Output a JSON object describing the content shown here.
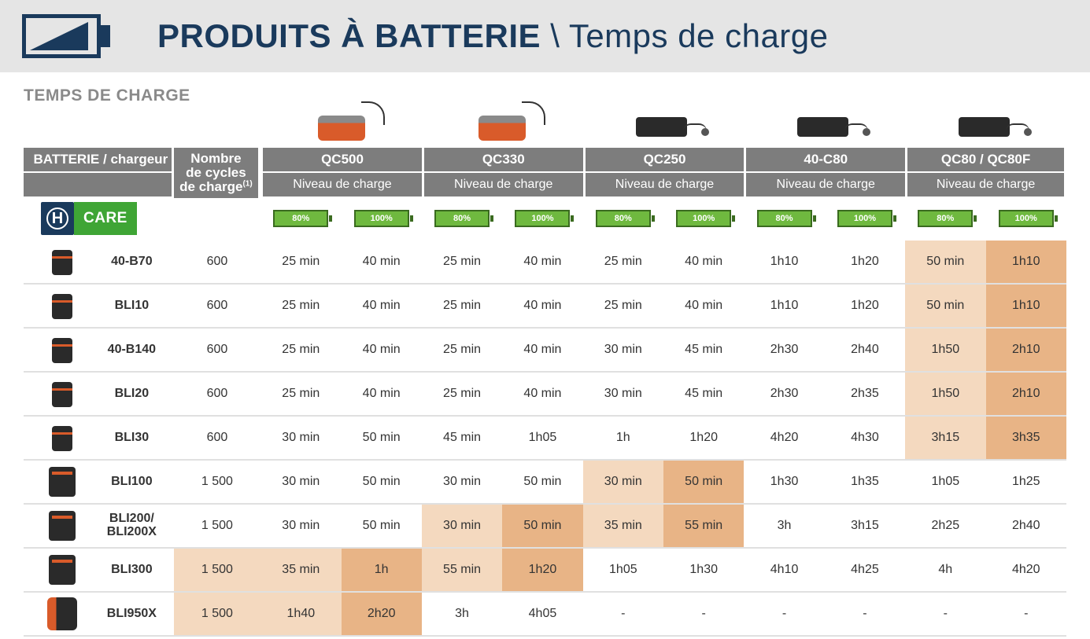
{
  "header": {
    "title_bold": "PRODUITS À BATTERIE",
    "title_rest": " \\ Temps de charge",
    "icon_border_color": "#1a3a5c",
    "bg_color": "#e5e5e5"
  },
  "subtitle": "TEMPS DE CHARGE",
  "styling": {
    "header_row_bg": "#7d7d7d",
    "header_row_fg": "#ffffff",
    "row_border": "#e0e0e0",
    "highlight_light": "#f4d9bf",
    "highlight_dark": "#e8b486",
    "care_blue": "#1a3a5c",
    "care_green": "#3fa535",
    "pill_bg": "#6fb93f",
    "pill_border": "#3a6b1f",
    "body_font_size": 16,
    "header_font_size": 17
  },
  "labels": {
    "battery_charger": "BATTERIE / chargeur",
    "cycles_l1": "Nombre",
    "cycles_l2": "de cycles",
    "cycles_l3": "de charge",
    "cycles_sup": "(1)",
    "level": "Niveau de charge",
    "care": "CARE",
    "pct80": "80%",
    "pct100": "100%"
  },
  "chargers": [
    {
      "id": "QC500",
      "style": "orange"
    },
    {
      "id": "QC330",
      "style": "orange"
    },
    {
      "id": "QC250",
      "style": "black"
    },
    {
      "id": "40-C80",
      "style": "black"
    },
    {
      "id": "QC80 / QC80F",
      "style": "black"
    }
  ],
  "batteries": [
    {
      "name": "40-B70",
      "icon": "small",
      "cycles": "600",
      "times": [
        "25 min",
        "40 min",
        "25 min",
        "40 min",
        "25 min",
        "40 min",
        "1h10",
        "1h20",
        "50 min",
        "1h10"
      ],
      "hl_cols": [
        8,
        9
      ]
    },
    {
      "name": "BLI10",
      "icon": "small",
      "cycles": "600",
      "times": [
        "25 min",
        "40 min",
        "25 min",
        "40 min",
        "25 min",
        "40 min",
        "1h10",
        "1h20",
        "50 min",
        "1h10"
      ],
      "hl_cols": [
        8,
        9
      ]
    },
    {
      "name": "40-B140",
      "icon": "small",
      "cycles": "600",
      "times": [
        "25 min",
        "40 min",
        "25 min",
        "40 min",
        "30 min",
        "45 min",
        "2h30",
        "2h40",
        "1h50",
        "2h10"
      ],
      "hl_cols": [
        8,
        9
      ]
    },
    {
      "name": "BLI20",
      "icon": "small",
      "cycles": "600",
      "times": [
        "25 min",
        "40 min",
        "25 min",
        "40 min",
        "30 min",
        "45 min",
        "2h30",
        "2h35",
        "1h50",
        "2h10"
      ],
      "hl_cols": [
        8,
        9
      ]
    },
    {
      "name": "BLI30",
      "icon": "small",
      "cycles": "600",
      "times": [
        "30 min",
        "50 min",
        "45 min",
        "1h05",
        "1h",
        "1h20",
        "4h20",
        "4h30",
        "3h15",
        "3h35"
      ],
      "hl_cols": [
        8,
        9
      ]
    },
    {
      "name": "BLI100",
      "icon": "med",
      "cycles": "1 500",
      "times": [
        "30 min",
        "50 min",
        "30 min",
        "50 min",
        "30 min",
        "50 min",
        "1h30",
        "1h35",
        "1h05",
        "1h25"
      ],
      "hl_cols": [
        4,
        5
      ]
    },
    {
      "name": "BLI200/\nBLI200X",
      "icon": "med",
      "cycles": "1 500",
      "times": [
        "30 min",
        "50 min",
        "30 min",
        "50 min",
        "35 min",
        "55 min",
        "3h",
        "3h15",
        "2h25",
        "2h40"
      ],
      "hl_cols": [
        2,
        3,
        4,
        5
      ]
    },
    {
      "name": "BLI300",
      "icon": "med",
      "cycles": "1 500",
      "times": [
        "35 min",
        "1h",
        "55 min",
        "1h20",
        "1h05",
        "1h30",
        "4h10",
        "4h25",
        "4h",
        "4h20"
      ],
      "hl_cols": [
        1,
        2,
        3
      ],
      "hl_cycles": true
    },
    {
      "name": "BLI950X",
      "icon": "backpack",
      "cycles": "1 500",
      "times": [
        "1h40",
        "2h20",
        "3h",
        "4h05",
        "-",
        "-",
        "-",
        "-",
        "-",
        "-"
      ],
      "hl_cols": [
        0,
        1
      ],
      "hl_cycles": true
    }
  ]
}
